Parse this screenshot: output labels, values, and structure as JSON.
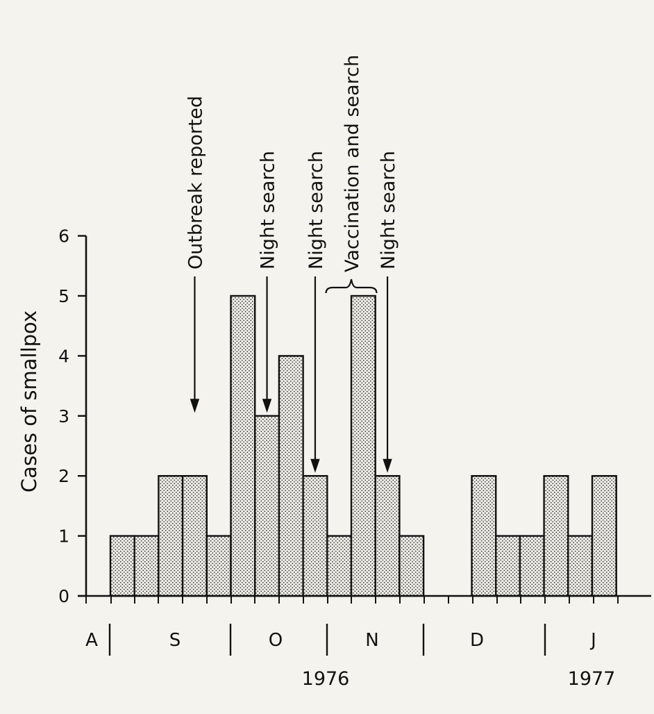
{
  "chart_data": {
    "type": "bar",
    "ylabel": "Cases of smallpox",
    "ylim": [
      0,
      6
    ],
    "yticks": [
      "0",
      "1",
      "2",
      "3",
      "4",
      "5",
      "6"
    ],
    "weeks": [
      {
        "index": 1,
        "value": 1
      },
      {
        "index": 2,
        "value": 1
      },
      {
        "index": 3,
        "value": 2
      },
      {
        "index": 4,
        "value": 2
      },
      {
        "index": 5,
        "value": 1
      },
      {
        "index": 6,
        "value": 5
      },
      {
        "index": 7,
        "value": 3
      },
      {
        "index": 8,
        "value": 4
      },
      {
        "index": 9,
        "value": 2
      },
      {
        "index": 10,
        "value": 1
      },
      {
        "index": 11,
        "value": 5
      },
      {
        "index": 12,
        "value": 2
      },
      {
        "index": 13,
        "value": 1
      },
      {
        "index": 14,
        "value": 0
      },
      {
        "index": 15,
        "value": 0
      },
      {
        "index": 16,
        "value": 2
      },
      {
        "index": 17,
        "value": 1
      },
      {
        "index": 18,
        "value": 1
      },
      {
        "index": 19,
        "value": 2
      },
      {
        "index": 20,
        "value": 1
      },
      {
        "index": 21,
        "value": 2
      }
    ],
    "months": [
      "A",
      "S",
      "O",
      "N",
      "D",
      "J"
    ],
    "years": [
      "1976",
      "1977"
    ],
    "annotations": [
      {
        "label": "Outbreak reported",
        "week": 4.5,
        "points_to": 3
      },
      {
        "label": "Night search",
        "week": 7.5,
        "points_to": 3
      },
      {
        "label": "Night search",
        "week": 9.5,
        "points_to": 2
      },
      {
        "label": "Vaccination and search",
        "week_start": 9.95,
        "week_end": 12.05
      },
      {
        "label": "Night search",
        "week": 12.5,
        "points_to": 2
      }
    ],
    "fill_pattern": "dotted",
    "grid": false
  }
}
